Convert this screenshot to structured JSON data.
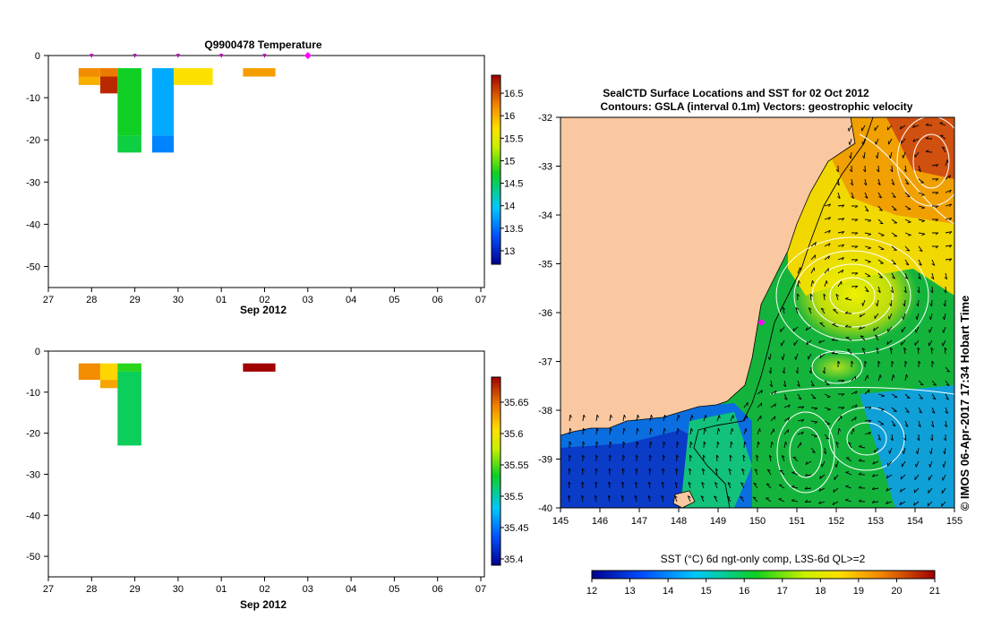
{
  "chart_data": [
    {
      "type": "heatmap",
      "id": "temperature",
      "title": "Q9900478  Temperature",
      "xlabel": "Sep 2012",
      "xlim": [
        27,
        7
      ],
      "x_ticks": [
        "27",
        "28",
        "29",
        "30",
        "01",
        "02",
        "03",
        "04",
        "05",
        "06",
        "07"
      ],
      "ylim": [
        -55,
        0
      ],
      "y_ticks": [
        0,
        -10,
        -20,
        -30,
        -40,
        -50
      ],
      "profile_markers": [
        28,
        29,
        30,
        31,
        32,
        33
      ],
      "colorbar": {
        "min": 12.7,
        "max": 16.9,
        "ticks": [
          13,
          13.5,
          14,
          14.5,
          15,
          15.5,
          16,
          16.5
        ]
      },
      "cells": [
        {
          "x0": 27.7,
          "x1": 28.2,
          "d0": -3,
          "d1": -5,
          "value": 16.2
        },
        {
          "x0": 27.7,
          "x1": 28.2,
          "d0": -5,
          "d1": -7,
          "value": 16.0
        },
        {
          "x0": 28.2,
          "x1": 28.6,
          "d0": -3,
          "d1": -5,
          "value": 16.3
        },
        {
          "x0": 28.2,
          "x1": 28.6,
          "d0": -5,
          "d1": -9,
          "value": 16.7
        },
        {
          "x0": 28.6,
          "x1": 29.15,
          "d0": -3,
          "d1": -19,
          "value": 14.7
        },
        {
          "x0": 28.6,
          "x1": 29.15,
          "d0": -19,
          "d1": -23,
          "value": 14.6
        },
        {
          "x0": 29.4,
          "x1": 29.9,
          "d0": -3,
          "d1": -19,
          "value": 13.8
        },
        {
          "x0": 29.4,
          "x1": 29.9,
          "d0": -19,
          "d1": -23,
          "value": 13.6
        },
        {
          "x0": 29.9,
          "x1": 30.8,
          "d0": -3,
          "d1": -7,
          "value": 15.7
        },
        {
          "x0": 31.5,
          "x1": 32.25,
          "d0": -3,
          "d1": -5,
          "value": 16.1
        }
      ]
    },
    {
      "type": "heatmap",
      "id": "salinity",
      "title": "",
      "xlabel": "Sep 2012",
      "xlim": [
        27,
        7
      ],
      "x_ticks": [
        "27",
        "28",
        "29",
        "30",
        "01",
        "02",
        "03",
        "04",
        "05",
        "06",
        "07"
      ],
      "ylim": [
        -55,
        0
      ],
      "y_ticks": [
        0,
        -10,
        -20,
        -30,
        -40,
        -50
      ],
      "colorbar": {
        "min": 35.39,
        "max": 35.69,
        "ticks": [
          35.4,
          35.45,
          35.5,
          35.55,
          35.6,
          35.65
        ]
      },
      "cells": [
        {
          "x0": 27.7,
          "x1": 28.2,
          "d0": -3,
          "d1": -7,
          "value": 35.64
        },
        {
          "x0": 28.2,
          "x1": 28.6,
          "d0": -3,
          "d1": -7,
          "value": 35.61
        },
        {
          "x0": 28.2,
          "x1": 28.6,
          "d0": -7,
          "d1": -9,
          "value": 35.63
        },
        {
          "x0": 28.6,
          "x1": 29.15,
          "d0": -3,
          "d1": -5,
          "value": 35.54
        },
        {
          "x0": 28.6,
          "x1": 29.15,
          "d0": -5,
          "d1": -23,
          "value": 35.52
        },
        {
          "x0": 31.5,
          "x1": 32.25,
          "d0": -3,
          "d1": -5,
          "value": 35.69
        }
      ]
    },
    {
      "type": "heatmap",
      "id": "map",
      "title_line1": "SealCTD Surface Locations and SST for 02 Oct 2012",
      "title_line2": "Contours: GSLA (interval 0.1m)  Vectors: geostrophic velocity",
      "xlim": [
        145,
        155
      ],
      "ylim": [
        -40,
        -32
      ],
      "x_ticks": [
        145,
        146,
        147,
        148,
        149,
        150,
        151,
        152,
        153,
        154,
        155
      ],
      "y_ticks": [
        -32,
        -33,
        -34,
        -35,
        -36,
        -37,
        -38,
        -39,
        -40
      ],
      "seal_location": {
        "lon": 150.1,
        "lat": -36.2
      },
      "colorbar": {
        "label": "SST (°C) 6d ngt-only comp, L3S-6d QL>=2",
        "min": 12,
        "max": 21,
        "ticks": [
          12,
          13,
          14,
          15,
          16,
          17,
          18,
          19,
          20,
          21
        ]
      },
      "side_label": "© IMOS 06-Apr-2017 17:34 Hobart Time"
    }
  ]
}
